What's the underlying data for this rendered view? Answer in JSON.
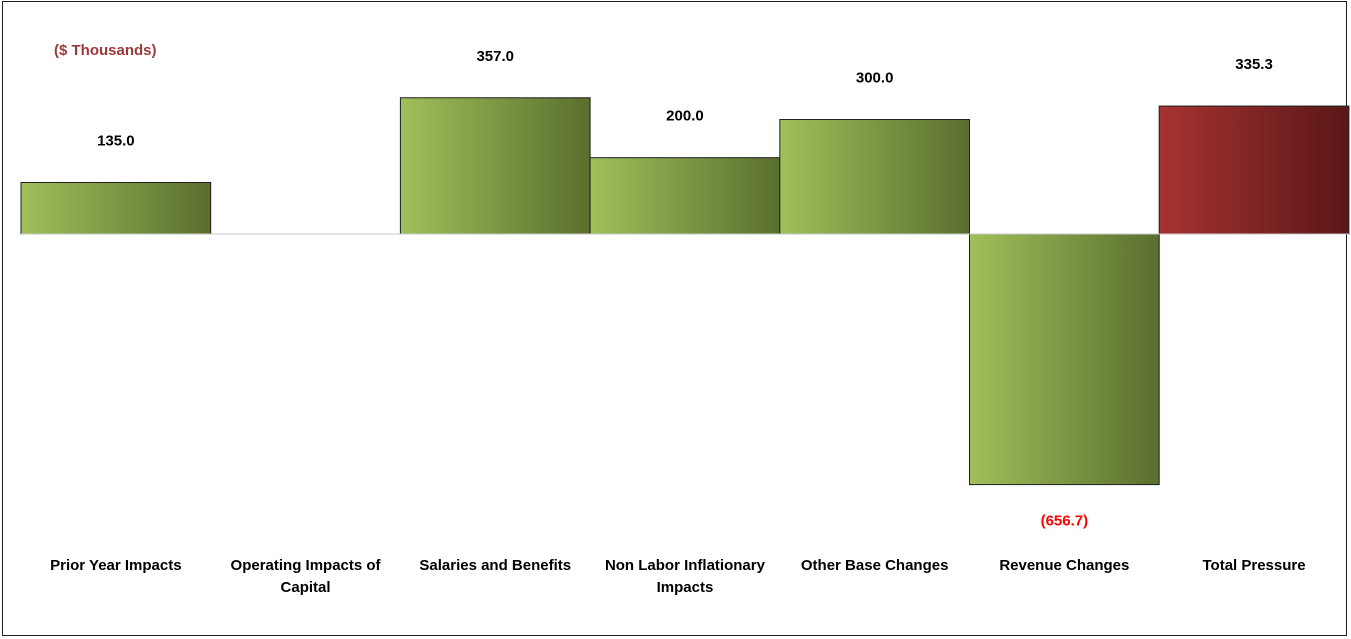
{
  "chart_data": {
    "type": "bar",
    "unit_label": "($ Thousands)",
    "categories": [
      "Prior Year Impacts",
      "Operating Impacts of Capital",
      "Salaries and Benefits",
      "Non Labor Inflationary Impacts",
      "Other Base Changes",
      "Revenue Changes",
      "Total Pressure"
    ],
    "values": [
      135.0,
      0,
      357.0,
      200.0,
      300.0,
      -656.7,
      335.3
    ],
    "value_labels": [
      "135.0",
      "",
      "357.0",
      "200.0",
      "300.0",
      "(656.7)",
      "335.3"
    ],
    "ylim": [
      -700,
      400
    ],
    "grid": false,
    "legend": "none",
    "colors": {
      "bar_light": "#a0c05a",
      "bar_dark": "#5a6e2e",
      "total_light": "#a83232",
      "total_dark": "#5a1717",
      "negative_label": "#ff0000",
      "unit_label": "#9b3a3a",
      "axis_line": "#c8c8c8"
    }
  }
}
